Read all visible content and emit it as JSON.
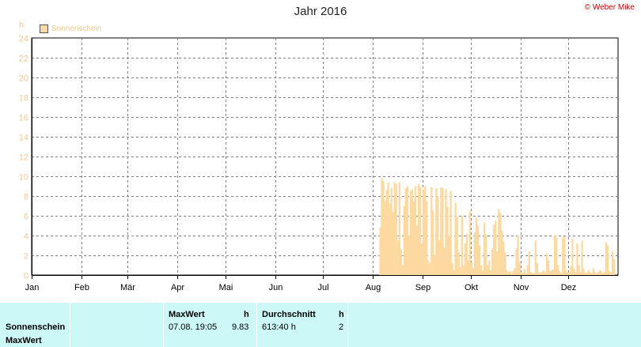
{
  "header": {
    "title": "Jahr 2016",
    "copyright": "© Weber Mike",
    "unit": "h",
    "legend_label": "Sonnenschein"
  },
  "colors": {
    "bar": "#fcd9a0",
    "axis_text": "#f0c890",
    "grid": "#808080",
    "panel": "#ccf8f8",
    "copyright": "#cc0000"
  },
  "chart_data": {
    "type": "bar",
    "title": "Jahr 2016",
    "ylabel": "h",
    "ylim": [
      0,
      24
    ],
    "yticks": [
      0,
      2,
      4,
      6,
      8,
      10,
      12,
      14,
      16,
      18,
      20,
      22,
      24
    ],
    "grid": true,
    "legend_position": "top-left",
    "xticks": [
      "Jan",
      "Feb",
      "Mär",
      "Apr",
      "Mai",
      "Jun",
      "Jul",
      "Aug",
      "Sep",
      "Okt",
      "Nov",
      "Dez"
    ],
    "series": [
      {
        "name": "Sonnenschein",
        "start": "2016-08-05",
        "values": [
          4.8,
          9.83,
          9.5,
          7.5,
          8.6,
          9.4,
          7.2,
          8.8,
          6.4,
          9.4,
          9.2,
          3.5,
          9.4,
          2.6,
          1.0,
          7.0,
          8.8,
          9.0,
          4.0,
          8.5,
          8.7,
          7.5,
          9.0,
          5.0,
          9.2,
          8.9,
          3.2,
          8.6,
          9.0,
          7.5,
          1.5,
          1.2,
          8.9,
          6.5,
          2.0,
          8.8,
          7.9,
          3.5,
          8.9,
          8.8,
          2.8,
          8.7,
          6.9,
          4.0,
          8.5,
          1.2,
          0.5,
          7.3,
          5.9,
          2.3,
          0.8,
          6.0,
          1.0,
          3.2,
          4.2,
          1.5,
          6.5,
          1.3,
          0.7,
          4.3,
          5.8,
          5.0,
          3.0,
          1.0,
          0.5,
          5.3,
          4.1,
          1.0,
          1.5,
          0.5,
          2.7,
          5.1,
          5.5,
          2.4,
          6.7,
          6.3,
          4.5,
          3.4,
          2.3,
          0.5,
          0.3,
          0.4,
          0.2,
          0.4,
          0.7,
          2.7,
          4.0,
          1.3,
          0.3,
          0.2,
          0.6,
          0.2,
          1.0,
          2.4,
          0.3,
          0.2,
          0.2,
          3.5,
          1.2,
          0.3,
          0.2,
          0.3,
          0.5,
          0.3,
          2.2,
          1.5,
          0.4,
          0.5,
          0.6,
          4.0,
          3.8,
          1.0,
          0.4,
          0.2,
          3.8,
          3.9,
          0.5,
          0.3,
          0.2,
          0.9,
          3.7,
          0.6,
          0.3,
          3.2,
          1.0,
          0.3,
          3.5,
          0.6,
          0.2,
          0.3,
          0.5,
          0.3,
          0.2,
          0.7,
          0.3,
          0.2,
          0.3,
          0.5,
          0.4,
          0.2,
          0.3,
          3.3,
          3.0,
          0.4,
          0.3,
          2.4,
          1.6
        ]
      }
    ]
  },
  "stats_table": {
    "row_labels": [
      "Sonnenschein",
      "MaxWert"
    ],
    "maxwert_header": "MaxWert",
    "maxwert_unit": "h",
    "maxwert_date": "07.08.  19:05",
    "maxwert_value": "9.83",
    "durchschnitt_header": "Durchschnitt",
    "durchschnitt_unit": "h",
    "durchschnitt_value": "613:40 h",
    "durchschnitt_count": "2"
  }
}
